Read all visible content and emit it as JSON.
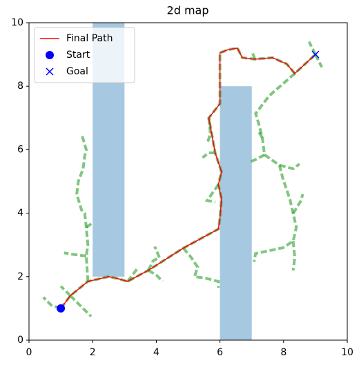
{
  "chart_data": {
    "type": "pathplan",
    "title": "2d map",
    "xlim": [
      0,
      10
    ],
    "ylim": [
      0,
      10
    ],
    "xticks": [
      0,
      2,
      4,
      6,
      8,
      10
    ],
    "yticks": [
      0,
      2,
      4,
      6,
      8,
      10
    ],
    "legend": "upper left",
    "obstacles": {
      "color": "#a6c8e0",
      "items": [
        {
          "x": [
            2,
            3
          ],
          "y": [
            2,
            10
          ]
        },
        {
          "x": [
            6,
            7
          ],
          "y": [
            0,
            8
          ]
        }
      ]
    },
    "tree": {
      "color": "#2ca02c",
      "branches": [
        {
          "x": [
            1,
            1.3,
            1.85,
            2.5,
            2.75,
            3.1,
            3.75,
            4.85,
            5.95,
            6.0,
            6.05,
            5.95,
            6.05,
            5.85,
            5.65,
            6.0,
            6.0,
            6.25,
            6.55,
            6.7,
            7.1,
            7.65,
            8.1,
            8.35,
            9
          ],
          "y": [
            1,
            1.4,
            1.85,
            2.0,
            1.95,
            1.85,
            2.2,
            2.9,
            3.5,
            3.85,
            4.45,
            4.9,
            5.3,
            5.9,
            7.0,
            7.45,
            9.05,
            9.15,
            9.2,
            8.9,
            8.85,
            8.9,
            8.7,
            8.4,
            9
          ]
        },
        {
          "x": [
            1.85,
            1.8,
            1.85,
            1.8,
            1.75,
            1.65,
            1.5,
            1.55,
            1.7,
            1.75,
            1.8,
            1.65
          ],
          "y": [
            1.85,
            2.65,
            3.0,
            3.55,
            4.0,
            4.1,
            4.6,
            5.0,
            5.4,
            5.8,
            6.0,
            6.5
          ]
        },
        {
          "x": [
            1.8,
            2.0
          ],
          "y": [
            3.55,
            3.7
          ]
        },
        {
          "x": [
            1.8,
            1.4,
            1.1
          ],
          "y": [
            2.65,
            2.7,
            2.75
          ]
        },
        {
          "x": [
            1,
            0.7,
            0.45
          ],
          "y": [
            1,
            1.1,
            1.35
          ]
        },
        {
          "x": [
            1.3,
            1.0
          ],
          "y": [
            1.4,
            1.7
          ]
        },
        {
          "x": [
            1.3,
            1.95
          ],
          "y": [
            1.4,
            0.75
          ]
        },
        {
          "x": [
            3.75,
            4.0,
            4.2
          ],
          "y": [
            2.2,
            2.05,
            1.85
          ]
        },
        {
          "x": [
            3.1,
            3.4
          ],
          "y": [
            1.85,
            2.25
          ]
        },
        {
          "x": [
            3.75,
            3.9,
            4.1,
            3.95
          ],
          "y": [
            2.2,
            2.5,
            2.6,
            2.95
          ]
        },
        {
          "x": [
            4.85,
            5.1,
            5.3,
            5.2,
            5.55,
            5.95,
            5.95
          ],
          "y": [
            2.9,
            2.6,
            2.3,
            2.0,
            1.95,
            1.85,
            1.65
          ]
        },
        {
          "x": [
            5.95,
            5.6,
            5.85
          ],
          "y": [
            4.9,
            4.4,
            4.35
          ]
        },
        {
          "x": [
            5.85,
            5.65,
            5.45
          ],
          "y": [
            5.9,
            5.9,
            5.75
          ]
        },
        {
          "x": [
            5.65,
            5.7,
            5.6
          ],
          "y": [
            7.0,
            6.5,
            6.2
          ]
        },
        {
          "x": [
            8.35,
            7.55,
            7.12,
            7.22,
            7.33,
            7.4,
            7.87,
            7.98,
            8.2,
            8.3,
            8.4,
            8.3,
            7.98,
            7.12,
            7.07
          ],
          "y": [
            8.4,
            7.7,
            7.14,
            6.81,
            6.38,
            5.84,
            5.51,
            5.08,
            4.43,
            3.99,
            3.56,
            3.12,
            2.91,
            2.73,
            2.47
          ]
        },
        {
          "x": [
            7.4,
            7.15,
            6.9
          ],
          "y": [
            5.84,
            5.7,
            5.6
          ]
        },
        {
          "x": [
            7.33,
            7.2
          ],
          "y": [
            6.38,
            6.6
          ]
        },
        {
          "x": [
            7.87,
            8.3,
            8.5
          ],
          "y": [
            5.51,
            5.4,
            5.55
          ]
        },
        {
          "x": [
            8.3,
            8.55,
            8.6
          ],
          "y": [
            3.99,
            4.4,
            4.6
          ]
        },
        {
          "x": [
            8.3,
            8.35,
            8.3
          ],
          "y": [
            3.12,
            2.6,
            2.2
          ]
        },
        {
          "x": [
            7.1,
            7.0
          ],
          "y": [
            8.85,
            9.1
          ]
        },
        {
          "x": [
            9,
            8.8
          ],
          "y": [
            9,
            9.4
          ]
        },
        {
          "x": [
            9,
            9.2
          ],
          "y": [
            9,
            8.6
          ]
        }
      ]
    },
    "series": [
      {
        "name": "Final Path",
        "color": "#ff0000",
        "marker": "line",
        "x": [
          1,
          1.3,
          1.85,
          2.5,
          2.75,
          3.1,
          3.75,
          4.85,
          5.95,
          6.0,
          6.05,
          5.95,
          6.05,
          5.85,
          5.65,
          6.0,
          6.0,
          6.25,
          6.55,
          6.7,
          7.1,
          7.65,
          8.1,
          8.35,
          9
        ],
        "y": [
          1,
          1.4,
          1.85,
          2.0,
          1.95,
          1.85,
          2.2,
          2.9,
          3.5,
          3.85,
          4.45,
          4.9,
          5.3,
          5.9,
          7.0,
          7.45,
          9.05,
          9.15,
          9.2,
          8.9,
          8.85,
          8.9,
          8.7,
          8.4,
          9
        ]
      },
      {
        "name": "Start",
        "color": "#0000ff",
        "marker": "o",
        "x": [
          1
        ],
        "y": [
          1
        ]
      },
      {
        "name": "Goal",
        "color": "#0000ff",
        "marker": "x",
        "x": [
          9
        ],
        "y": [
          9
        ]
      }
    ]
  }
}
